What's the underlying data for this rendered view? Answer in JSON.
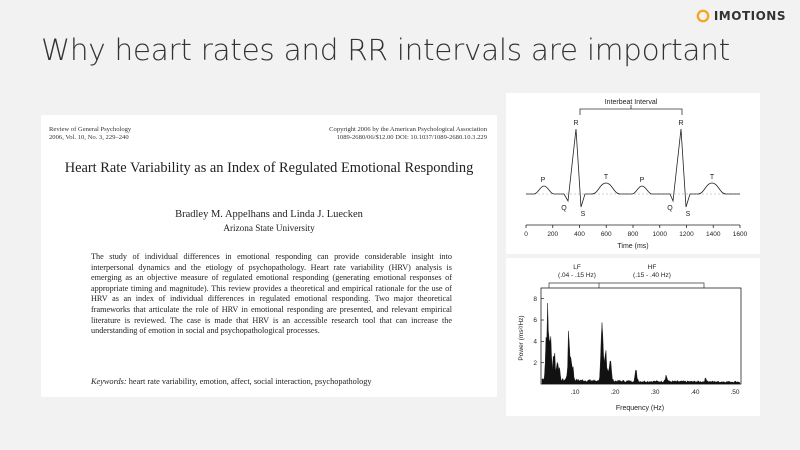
{
  "brand": {
    "name": "IMOTIONS",
    "accent": "#f5a623"
  },
  "slide": {
    "title": "Why heart rates and RR intervals are important"
  },
  "paper": {
    "journal": "Review of General Psychology",
    "volume": "2006, Vol. 10, No. 3, 229–240",
    "copyright": "Copyright 2006 by the American Psychological Association",
    "doi": "1089-2680/06/$12.00   DOI: 10.1037/1089-2680.10.3.229",
    "title": "Heart Rate Variability as an Index of Regulated Emotional Responding",
    "authors": "Bradley M. Appelhans and Linda J. Luecken",
    "affiliation": "Arizona State University",
    "abstract": "The study of individual differences in emotional responding can provide considerable insight into interpersonal dynamics and the etiology of psychopathology. Heart rate variability (HRV) analysis is emerging as an objective measure of regulated emotional responding (generating emotional responses of appropriate timing and magnitude). This review provides a theoretical and empirical rationale for the use of HRV as an index of individual differences in regulated emotional responding. Two major theoretical frameworks that articulate the role of HRV in emotional responding are presented, and relevant empirical literature is reviewed. The case is made that HRV is an accessible research tool that can increase the understanding of emotion in social and psychopathological processes.",
    "keywords_label": "Keywords:",
    "keywords": "heart rate variability, emotion, affect, social interaction, psychopathology"
  },
  "ecg_figure": {
    "bracket_label": "Interbeat Interval",
    "xlabel": "Time (ms)",
    "x_ticks": [
      "0",
      "200",
      "400",
      "600",
      "800",
      "1000",
      "1200",
      "1400",
      "1600"
    ],
    "wave_labels": [
      "P",
      "Q",
      "R",
      "S",
      "T",
      "P",
      "Q",
      "R",
      "S",
      "T"
    ]
  },
  "psd_figure": {
    "band_lf": "LF",
    "band_lf_range": "(.04 - .15 Hz)",
    "band_hf": "HF",
    "band_hf_range": "(.15 - .40 Hz)",
    "xlabel": "Frequency (Hz)",
    "ylabel": "Power (ms²/Hz)",
    "x_ticks": [
      ".10",
      ".20",
      ".30",
      ".40",
      ".50"
    ],
    "y_ticks": [
      "2",
      "4",
      "6",
      "8"
    ]
  }
}
